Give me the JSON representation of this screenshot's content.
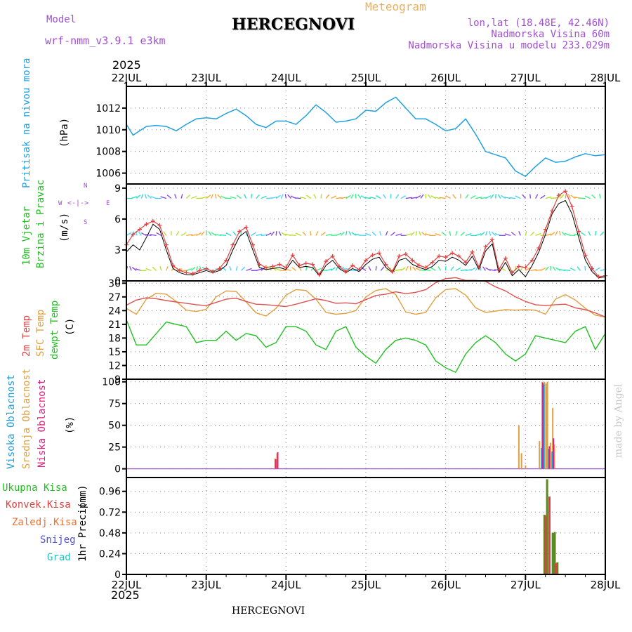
{
  "header": {
    "title": "HERCEGNOVI",
    "model_label": "Model",
    "model_name": "wrf-nmm_v3.9.1  e3km",
    "meteogram": "Meteogram",
    "lonlat": "lon,lat (18.48E, 42.46N)",
    "elevation": "Nadmorska Visina 60m",
    "model_elevation": "Nadmorska Visina u modelu 233.029m",
    "year_top": "2025",
    "year_bottom": "2025",
    "footer_title": "HERCEGNOVI",
    "signature": "made by Angel"
  },
  "colors": {
    "pressure": "#20a0e0",
    "wind_speed": "#e04040",
    "wind_gust": "#000000",
    "temp2m": "#e05050",
    "sfc_temp": "#e0a040",
    "dewpoint": "#20c020",
    "high_cloud": "#20a0e0",
    "mid_cloud": "#e0a040",
    "low_cloud": "#e02080",
    "total_precip": "#40a040",
    "conv_precip": "#e04040",
    "frozen_precip": "#f07030",
    "snow": "#5050e0",
    "hail": "#20c0c0",
    "wind_compass": "#a050d0"
  },
  "chart_data": [
    {
      "type": "line",
      "id": "pressure",
      "ylabel_main": "Pritisak na nivou mora",
      "ylabel_unit": "(hPa)",
      "ylim": [
        1005,
        1014
      ],
      "yticks": [
        1006,
        1008,
        1010,
        1012
      ],
      "x_hours": [
        0,
        2,
        4,
        6,
        9,
        12,
        15,
        18,
        21,
        24,
        27,
        30,
        33,
        36,
        39,
        42,
        45,
        48,
        51,
        54,
        57,
        60,
        63,
        66,
        69,
        72,
        75,
        78,
        81,
        84,
        87,
        90,
        93,
        96,
        99,
        102,
        105,
        108,
        111,
        114,
        117,
        120,
        123,
        126,
        129,
        132,
        135,
        138,
        141,
        144
      ],
      "values": [
        1010.5,
        1009.5,
        1009.9,
        1010.3,
        1010.4,
        1010.3,
        1009.9,
        1010.5,
        1011.0,
        1011.1,
        1011.0,
        1011.5,
        1011.9,
        1011.3,
        1010.5,
        1010.2,
        1010.8,
        1010.8,
        1010.5,
        1011.3,
        1012.3,
        1011.6,
        1010.7,
        1010.8,
        1011.0,
        1011.8,
        1011.7,
        1012.5,
        1013.0,
        1012.0,
        1011.0,
        1011.0,
        1010.5,
        1009.9,
        1010.1,
        1011.0,
        1009.6,
        1008.0,
        1007.7,
        1007.4,
        1006.2,
        1005.7,
        1006.6,
        1007.4,
        1007.0,
        1007.1,
        1007.5,
        1007.8,
        1007.6,
        1007.7
      ]
    },
    {
      "type": "line",
      "id": "wind",
      "ylabel_main": "10m Vjetar",
      "ylabel_sub": "Brzina i Pravac",
      "ylabel_unit": "(m/s)",
      "compass": [
        "W",
        "E",
        "N",
        "S"
      ],
      "ylim": [
        0,
        9.4
      ],
      "yticks": [
        0,
        3,
        6,
        9
      ],
      "x_hours": [
        0,
        2,
        4,
        6,
        8,
        10,
        12,
        14,
        16,
        18,
        20,
        22,
        24,
        26,
        28,
        30,
        32,
        34,
        36,
        38,
        40,
        42,
        44,
        46,
        48,
        50,
        52,
        54,
        56,
        58,
        60,
        62,
        64,
        66,
        68,
        70,
        72,
        74,
        76,
        78,
        80,
        82,
        84,
        86,
        88,
        90,
        92,
        94,
        96,
        98,
        100,
        102,
        104,
        106,
        108,
        110,
        112,
        114,
        116,
        118,
        120,
        122,
        124,
        126,
        128,
        130,
        132,
        134,
        136,
        138,
        140,
        142,
        144
      ],
      "speed": [
        3.5,
        4.5,
        5.0,
        5.5,
        5.8,
        5.4,
        3.5,
        1.5,
        1.0,
        0.8,
        0.7,
        1.0,
        1.2,
        0.9,
        1.2,
        2.0,
        3.5,
        4.8,
        5.2,
        3.5,
        1.6,
        1.3,
        1.4,
        1.6,
        1.3,
        2.5,
        1.5,
        1.7,
        1.6,
        0.6,
        1.9,
        2.4,
        1.4,
        0.9,
        1.5,
        1.1,
        2.0,
        2.5,
        2.7,
        1.6,
        0.9,
        2.4,
        2.6,
        2.0,
        1.5,
        1.3,
        1.8,
        2.4,
        2.3,
        2.7,
        2.4,
        1.8,
        2.8,
        1.3,
        3.3,
        4.0,
        1.1,
        2.2,
        0.8,
        1.4,
        1.3,
        2.0,
        3.2,
        5.0,
        6.8,
        8.3,
        8.7,
        7.2,
        4.8,
        2.5,
        1.2,
        0.4,
        0.5
      ],
      "gust": [
        2.8,
        3.5,
        3.0,
        4.2,
        5.5,
        5.0,
        3.0,
        1.2,
        0.8,
        0.6,
        0.6,
        0.8,
        1.0,
        0.8,
        1.0,
        1.5,
        3.0,
        4.3,
        4.8,
        3.0,
        1.3,
        1.1,
        1.2,
        1.3,
        1.1,
        2.0,
        1.3,
        1.4,
        1.3,
        0.5,
        1.5,
        2.0,
        1.2,
        0.8,
        1.2,
        0.9,
        1.6,
        2.1,
        2.3,
        1.3,
        0.8,
        2.0,
        2.2,
        1.6,
        1.3,
        1.1,
        1.4,
        2.0,
        1.9,
        2.3,
        2.0,
        1.5,
        2.4,
        1.1,
        2.9,
        3.6,
        0.8,
        1.8,
        0.5,
        1.1,
        0.4,
        1.5,
        2.8,
        4.5,
        6.5,
        7.5,
        7.8,
        6.5,
        4.2,
        2.0,
        0.9,
        0.3,
        0.4
      ]
    },
    {
      "type": "line",
      "id": "temperature",
      "ylabel_main": "2m Temp",
      "ylabel_sfc": "SFC Temp",
      "ylabel_dew": "dewpt Temp",
      "ylabel_unit": "(C)",
      "ylim": [
        9,
        30.5
      ],
      "yticks": [
        9,
        12,
        15,
        18,
        21,
        24,
        27,
        30
      ],
      "x_hours": [
        0,
        3,
        6,
        9,
        12,
        15,
        18,
        21,
        24,
        27,
        30,
        33,
        36,
        39,
        42,
        45,
        48,
        51,
        54,
        57,
        60,
        63,
        66,
        69,
        72,
        75,
        78,
        81,
        84,
        87,
        90,
        93,
        96,
        99,
        102,
        105,
        108,
        111,
        114,
        117,
        120,
        123,
        126,
        129,
        132,
        135,
        138,
        141,
        144
      ],
      "temp2m": [
        25.2,
        26.3,
        26.8,
        26.6,
        26.2,
        25.9,
        25.6,
        25.3,
        25.1,
        25.8,
        26.5,
        26.7,
        26.0,
        25.4,
        25.3,
        25.1,
        24.9,
        25.4,
        26.0,
        26.6,
        26.2,
        25.6,
        25.7,
        25.5,
        26.4,
        27.3,
        27.6,
        28.1,
        27.7,
        28.0,
        28.6,
        30.1,
        31.0,
        31.2,
        30.6,
        30.6,
        30.4,
        29.2,
        28.3,
        27.0,
        26.0,
        25.3,
        25.1,
        25.3,
        25.4,
        24.6,
        24.2,
        23.5,
        22.6
      ],
      "sfc_temp": [
        24.5,
        23.2,
        26.5,
        27.8,
        27.6,
        26.0,
        24.1,
        23.8,
        24.3,
        27.0,
        28.3,
        28.2,
        25.9,
        23.5,
        22.8,
        24.5,
        27.4,
        28.6,
        28.4,
        26.5,
        23.6,
        23.2,
        23.4,
        24.0,
        27.0,
        28.4,
        28.8,
        27.5,
        23.7,
        23.2,
        23.6,
        26.8,
        28.6,
        28.8,
        27.4,
        24.6,
        23.6,
        23.9,
        24.2,
        24.1,
        24.2,
        24.1,
        23.2,
        26.5,
        27.5,
        26.3,
        24.5,
        23.0,
        22.6
      ],
      "dewpoint": [
        22.0,
        16.5,
        16.5,
        19.0,
        21.5,
        21.0,
        20.5,
        17.0,
        17.5,
        17.5,
        19.5,
        17.5,
        19.0,
        18.5,
        16.0,
        17.0,
        20.5,
        20.5,
        19.5,
        16.5,
        15.5,
        19.5,
        20.5,
        16.0,
        14.0,
        12.5,
        15.5,
        17.5,
        18.0,
        17.5,
        16.5,
        13.0,
        11.5,
        10.5,
        14.5,
        17.0,
        18.5,
        17.0,
        14.5,
        13.0,
        14.5,
        18.5,
        18.0,
        17.5,
        17.0,
        19.5,
        20.5,
        15.5,
        19.0
      ]
    },
    {
      "type": "bar",
      "id": "clouds",
      "ylabel_high": "Visoka Oblacnost",
      "ylabel_mid": "Srednja Oblacnost",
      "ylabel_low": "Niska Oblacnost",
      "ylabel_unit": "(%)",
      "ylim": [
        -10,
        103
      ],
      "yticks": [
        0,
        25,
        50,
        75,
        100
      ],
      "high": [
        [
          124.8,
          24
        ],
        [
          125.5,
          97
        ],
        [
          127.0,
          23
        ],
        [
          128.0,
          20
        ]
      ],
      "mid": [
        [
          44.7,
          12
        ],
        [
          45.3,
          18
        ],
        [
          118.0,
          50
        ],
        [
          118.8,
          18
        ],
        [
          120.0,
          4
        ],
        [
          124.2,
          32
        ],
        [
          125.0,
          100
        ],
        [
          125.7,
          100
        ],
        [
          126.2,
          98
        ],
        [
          126.6,
          100
        ],
        [
          127.5,
          30
        ],
        [
          128.2,
          70
        ],
        [
          128.7,
          28
        ]
      ],
      "low": [
        [
          44.9,
          11
        ],
        [
          45.5,
          19
        ],
        [
          125.2,
          99
        ],
        [
          127.2,
          26
        ],
        [
          128.4,
          35
        ]
      ]
    },
    {
      "type": "bar",
      "id": "precip",
      "ylabel_main": "1hr Precip",
      "ylabel_unit": "(mm)",
      "legend": [
        "Ukupna  Kisa",
        "Konvek.Kisa",
        "Zaledj.Kisa",
        "Snijeg",
        "Grad"
      ],
      "ylim": [
        0,
        1.12
      ],
      "yticks": [
        0,
        0.24,
        0.48,
        0.72,
        0.96
      ],
      "total": [
        [
          125.7,
          0.69
        ],
        [
          126.5,
          1.1
        ],
        [
          128.2,
          0.48
        ],
        [
          128.8,
          0.49
        ],
        [
          129.6,
          0.14
        ]
      ],
      "conv": [
        [
          126.0,
          0.68
        ],
        [
          127.2,
          0.9
        ],
        [
          129.2,
          0.13
        ]
      ]
    }
  ],
  "x_axis": {
    "start_hour": 0,
    "end_hour": 144,
    "ticks": [
      {
        "h": 0,
        "label": "22JUL"
      },
      {
        "h": 24,
        "label": "23JUL"
      },
      {
        "h": 48,
        "label": "24JUL"
      },
      {
        "h": 72,
        "label": "25JUL"
      },
      {
        "h": 96,
        "label": "26JUL"
      },
      {
        "h": 120,
        "label": "27JUL"
      },
      {
        "h": 144,
        "label": "28JUL"
      }
    ]
  }
}
